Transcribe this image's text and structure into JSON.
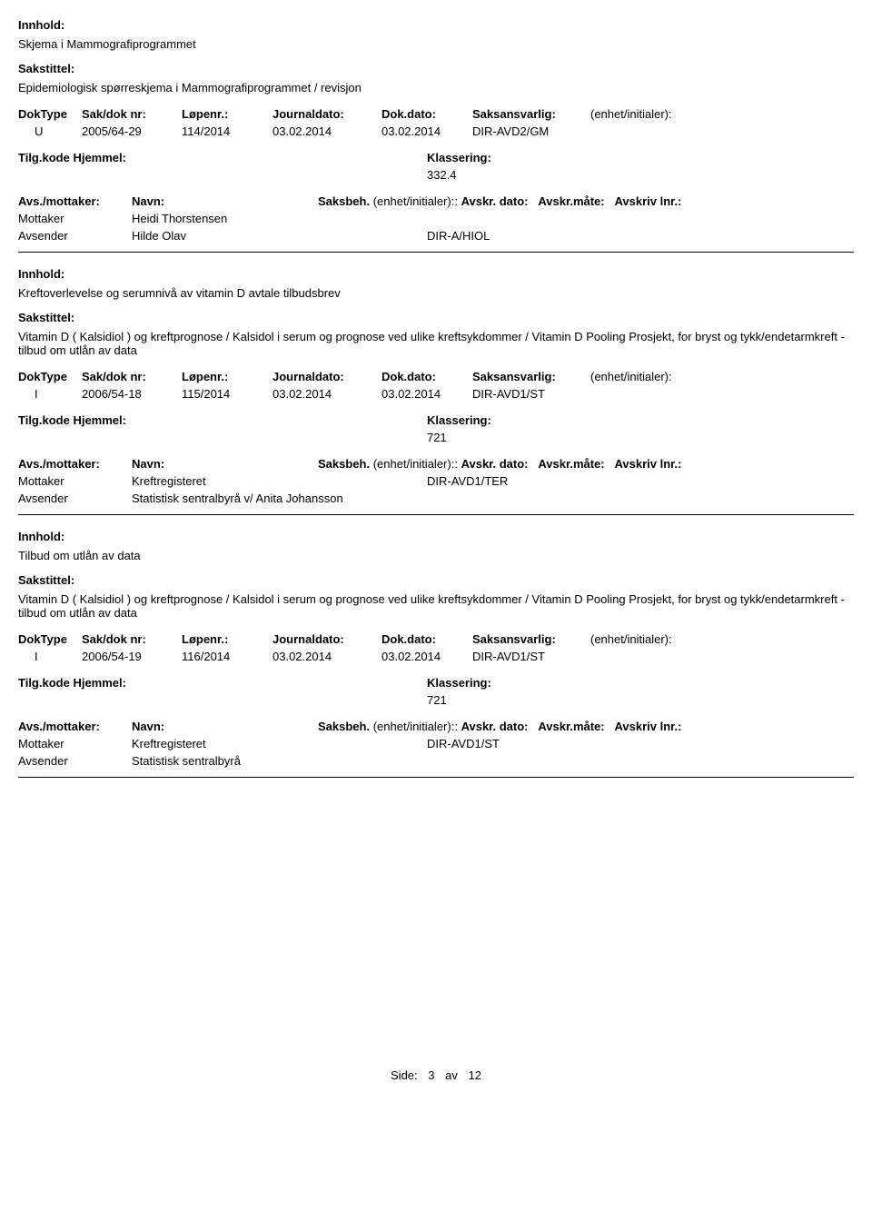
{
  "labels": {
    "innhold": "Innhold:",
    "sakstittel": "Sakstittel:",
    "doktype": "DokType",
    "sakdoknr": "Sak/dok nr:",
    "lopenr": "Løpenr.:",
    "journaldato": "Journaldato:",
    "dokdato": "Dok.dato:",
    "saksansvarlig": "Saksansvarlig:",
    "enhet_initialer": "(enhet/initialer):",
    "tilgkode": "Tilg.kode",
    "hjemmel": "Hjemmel:",
    "klassering": "Klassering:",
    "avs_mottaker": "Avs./mottaker:",
    "navn": "Navn:",
    "saksbeh": "Saksbeh.",
    "avskr_dato": "Avskr. dato:",
    "avskr_mate": "Avskr.måte:",
    "avskriv_lnr": "Avskriv lnr.:",
    "mottaker": "Mottaker",
    "avsender": "Avsender"
  },
  "entries": [
    {
      "innhold": "Skjema i Mammografiprogrammet",
      "sakstittel": "Epidemiologisk spørreskjema i Mammografiprogrammet / revisjon",
      "doktype": "U",
      "sakdoknr": "2005/64-29",
      "lopenr": "114/2014",
      "journaldato": "03.02.2014",
      "dokdato": "03.02.2014",
      "saksansvarlig": "DIR-AVD2/GM",
      "klassering": "332.4",
      "parties": [
        {
          "role": "Mottaker",
          "name": "Heidi Thorstensen",
          "code": ""
        },
        {
          "role": "Avsender",
          "name": "Hilde Olav",
          "code": "DIR-A/HIOL"
        }
      ]
    },
    {
      "innhold": "Kreftoverlevelse og serumnivå av vitamin D avtale tilbudsbrev",
      "sakstittel": "Vitamin D ( Kalsidiol ) og kreftprognose / Kalsidol i serum og prognose ved ulike kreftsykdommer / Vitamin D Pooling Prosjekt, for bryst og tykk/endetarmkreft - tilbud om utlån av data",
      "doktype": "I",
      "sakdoknr": "2006/54-18",
      "lopenr": "115/2014",
      "journaldato": "03.02.2014",
      "dokdato": "03.02.2014",
      "saksansvarlig": "DIR-AVD1/ST",
      "klassering": "721",
      "parties": [
        {
          "role": "Mottaker",
          "name": "Kreftregisteret",
          "code": "DIR-AVD1/TER"
        },
        {
          "role": "Avsender",
          "name": "Statistisk sentralbyrå v/ Anita Johansson",
          "code": ""
        }
      ]
    },
    {
      "innhold": "Tilbud om utlån av data",
      "sakstittel": "Vitamin D ( Kalsidiol ) og kreftprognose / Kalsidol i serum og prognose ved ulike kreftsykdommer / Vitamin D Pooling Prosjekt, for bryst og tykk/endetarmkreft - tilbud om utlån av data",
      "doktype": "I",
      "sakdoknr": "2006/54-19",
      "lopenr": "116/2014",
      "journaldato": "03.02.2014",
      "dokdato": "03.02.2014",
      "saksansvarlig": "DIR-AVD1/ST",
      "klassering": "721",
      "parties": [
        {
          "role": "Mottaker",
          "name": "Kreftregisteret",
          "code": "DIR-AVD1/ST"
        },
        {
          "role": "Avsender",
          "name": "Statistisk sentralbyrå",
          "code": ""
        }
      ]
    }
  ],
  "footer": {
    "side": "Side:",
    "page": "3",
    "av": "av",
    "total": "12"
  }
}
